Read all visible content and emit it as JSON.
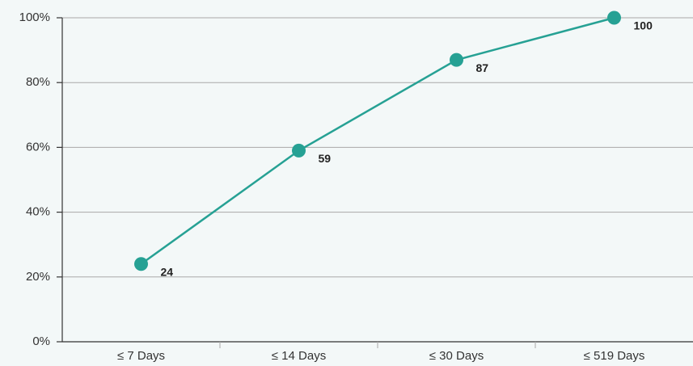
{
  "chart_data": {
    "type": "line",
    "categories": [
      "≤ 7 Days",
      "≤ 14 Days",
      "≤ 30 Days",
      "≤ 519 Days"
    ],
    "values": [
      24,
      59,
      87,
      100
    ],
    "color": "#26a194",
    "ylim": [
      0,
      100
    ],
    "yticks": [
      {
        "value": 0,
        "label": "0%"
      },
      {
        "value": 20,
        "label": "20%"
      },
      {
        "value": 40,
        "label": "40%"
      },
      {
        "value": 60,
        "label": "60%"
      },
      {
        "value": 80,
        "label": "80%"
      },
      {
        "value": 100,
        "label": "100%"
      }
    ],
    "grid": true
  }
}
